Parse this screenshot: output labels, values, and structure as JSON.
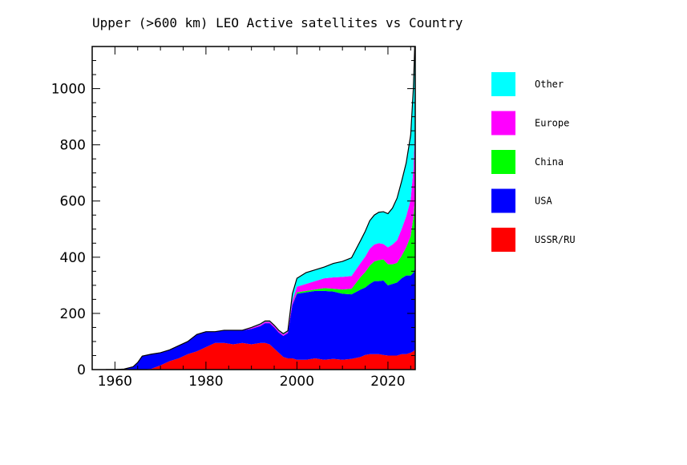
{
  "chart_data": {
    "type": "area",
    "title": "Upper (>600 km) LEO Active satellites vs Country",
    "xlabel": "",
    "ylabel": "",
    "xlim": [
      1955,
      2026
    ],
    "ylim": [
      0,
      1150
    ],
    "x_ticks": [
      1960,
      1980,
      2000,
      2020
    ],
    "y_ticks": [
      0,
      200,
      400,
      600,
      800,
      1000
    ],
    "grid": false,
    "legend_position": "right",
    "stacked": true,
    "x": [
      1958,
      1960,
      1962,
      1964,
      1965,
      1966,
      1968,
      1970,
      1972,
      1974,
      1976,
      1978,
      1980,
      1982,
      1984,
      1986,
      1988,
      1990,
      1992,
      1993,
      1994,
      1995,
      1996,
      1997,
      1998,
      1999,
      2000,
      2002,
      2004,
      2006,
      2008,
      2010,
      2012,
      2014,
      2015,
      2016,
      2017,
      2018,
      2019,
      2020,
      2021,
      2022,
      2023,
      2024,
      2025,
      2025.6,
      2025.9
    ],
    "series": [
      {
        "name": "USSR/RU",
        "color": "#ff0000",
        "values": [
          0,
          0,
          0,
          0,
          0,
          0,
          3,
          15,
          30,
          40,
          55,
          65,
          80,
          95,
          95,
          90,
          95,
          90,
          95,
          95,
          90,
          75,
          60,
          45,
          40,
          40,
          35,
          35,
          40,
          35,
          38,
          35,
          38,
          45,
          52,
          55,
          55,
          55,
          52,
          50,
          50,
          50,
          55,
          55,
          60,
          65,
          70
        ]
      },
      {
        "name": "USA",
        "color": "#0000ff",
        "values": [
          0,
          0,
          2,
          10,
          25,
          48,
          52,
          45,
          40,
          45,
          45,
          60,
          55,
          40,
          45,
          50,
          45,
          55,
          60,
          70,
          75,
          75,
          72,
          75,
          90,
          190,
          235,
          240,
          240,
          245,
          240,
          235,
          230,
          240,
          240,
          250,
          260,
          260,
          265,
          250,
          255,
          260,
          270,
          280,
          275,
          280,
          290
        ]
      },
      {
        "name": "China",
        "color": "#00ff00",
        "values": [
          0,
          0,
          0,
          0,
          0,
          0,
          0,
          0,
          0,
          0,
          0,
          0,
          0,
          0,
          0,
          0,
          0,
          0,
          0,
          0,
          0,
          0,
          0,
          0,
          0,
          0,
          5,
          5,
          5,
          10,
          10,
          15,
          20,
          45,
          55,
          65,
          70,
          75,
          75,
          75,
          70,
          70,
          80,
          100,
          140,
          200,
          240
        ]
      },
      {
        "name": "Europe",
        "color": "#ff00ff",
        "values": [
          0,
          0,
          0,
          0,
          0,
          0,
          0,
          0,
          0,
          0,
          0,
          0,
          0,
          0,
          0,
          0,
          0,
          3,
          5,
          5,
          5,
          5,
          5,
          5,
          5,
          15,
          20,
          25,
          30,
          35,
          40,
          45,
          45,
          50,
          55,
          60,
          60,
          60,
          55,
          60,
          70,
          80,
          95,
          110,
          130,
          170,
          240
        ]
      },
      {
        "name": "Other",
        "color": "#00ffff",
        "values": [
          0,
          0,
          0,
          0,
          0,
          0,
          0,
          0,
          0,
          0,
          0,
          0,
          0,
          0,
          0,
          0,
          0,
          2,
          3,
          3,
          3,
          3,
          3,
          3,
          3,
          25,
          30,
          40,
          40,
          40,
          50,
          55,
          65,
          80,
          90,
          100,
          105,
          110,
          115,
          120,
          130,
          150,
          170,
          190,
          230,
          290,
          320
        ]
      }
    ]
  }
}
